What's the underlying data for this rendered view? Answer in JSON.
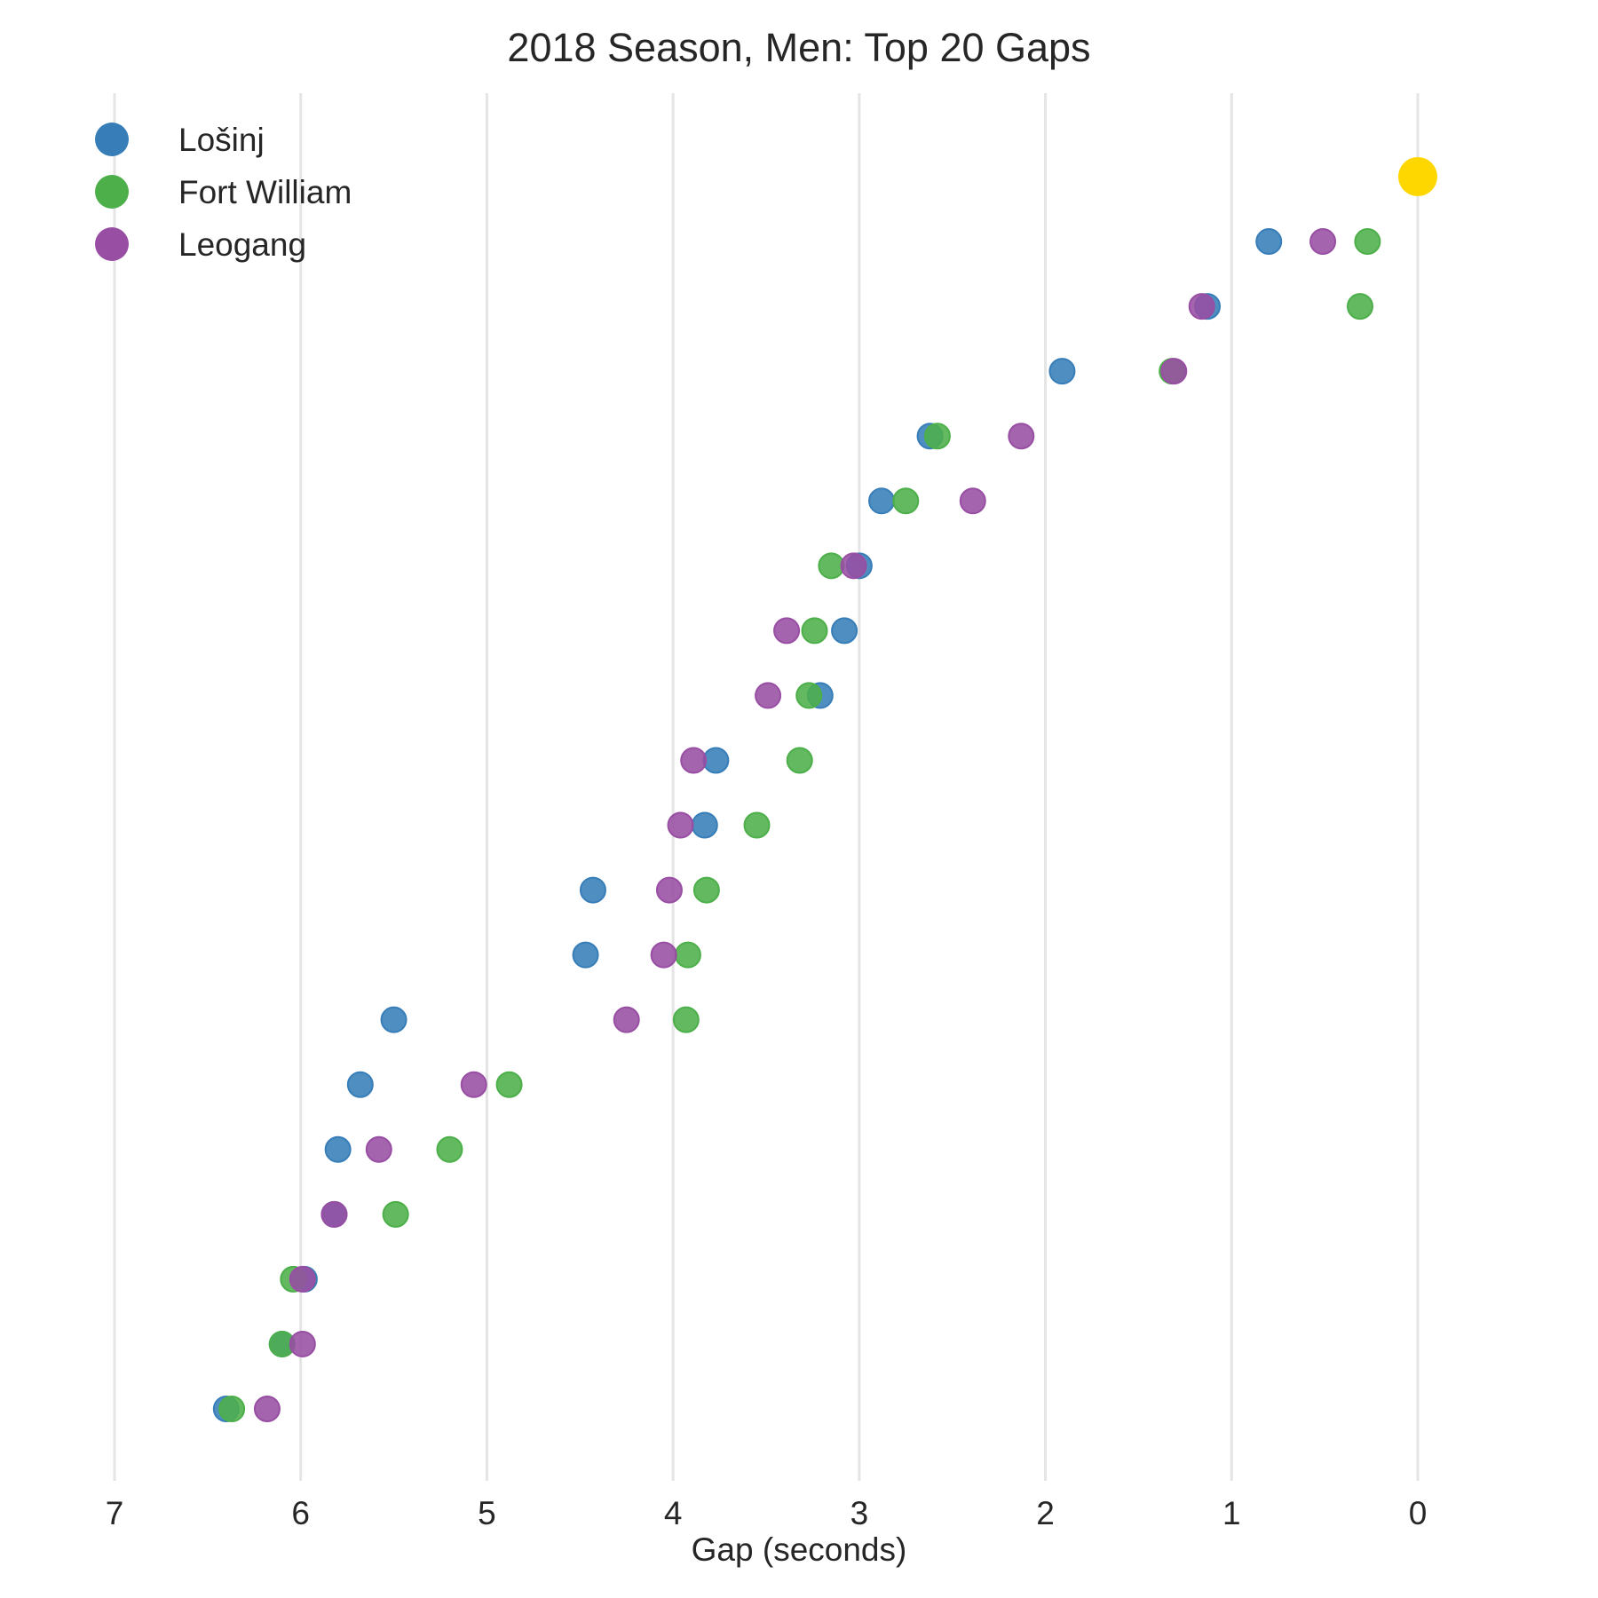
{
  "chart_data": {
    "type": "scatter",
    "title": "2018 Season, Men: Top 20 Gaps",
    "xlabel": "Gap (seconds)",
    "ylabel": "",
    "xlim": [
      7,
      0
    ],
    "x_ticks": [
      "7",
      "6",
      "5",
      "4",
      "3",
      "2",
      "1",
      "0"
    ],
    "x_reversed": true,
    "grid": "vertical",
    "legend_position": "top-left",
    "leader": {
      "rank": 1,
      "gap": 0,
      "color": "#FFD700"
    },
    "ranks": [
      2,
      3,
      4,
      5,
      6,
      7,
      8,
      9,
      10,
      11,
      12,
      13,
      14,
      15,
      16,
      17,
      18,
      19,
      20
    ],
    "series": [
      {
        "name": "Lošinj",
        "color": "#377EB8",
        "values": [
          0.8,
          1.13,
          1.91,
          2.62,
          2.88,
          3.0,
          3.08,
          3.21,
          3.77,
          3.83,
          4.43,
          4.47,
          5.5,
          5.68,
          5.8,
          5.82,
          5.98,
          6.1,
          6.4
        ]
      },
      {
        "name": "Fort William",
        "color": "#4DAF4A",
        "values": [
          0.27,
          0.31,
          1.32,
          2.58,
          2.75,
          3.15,
          3.24,
          3.27,
          3.32,
          3.55,
          3.82,
          3.92,
          3.93,
          4.88,
          5.2,
          5.49,
          6.04,
          6.1,
          6.37
        ]
      },
      {
        "name": "Leogang",
        "color": "#984EA3",
        "values": [
          0.51,
          1.16,
          1.31,
          2.13,
          2.39,
          3.03,
          3.39,
          3.49,
          3.89,
          3.96,
          4.02,
          4.05,
          4.25,
          5.07,
          5.58,
          5.82,
          5.99,
          5.99,
          6.18
        ]
      }
    ]
  }
}
